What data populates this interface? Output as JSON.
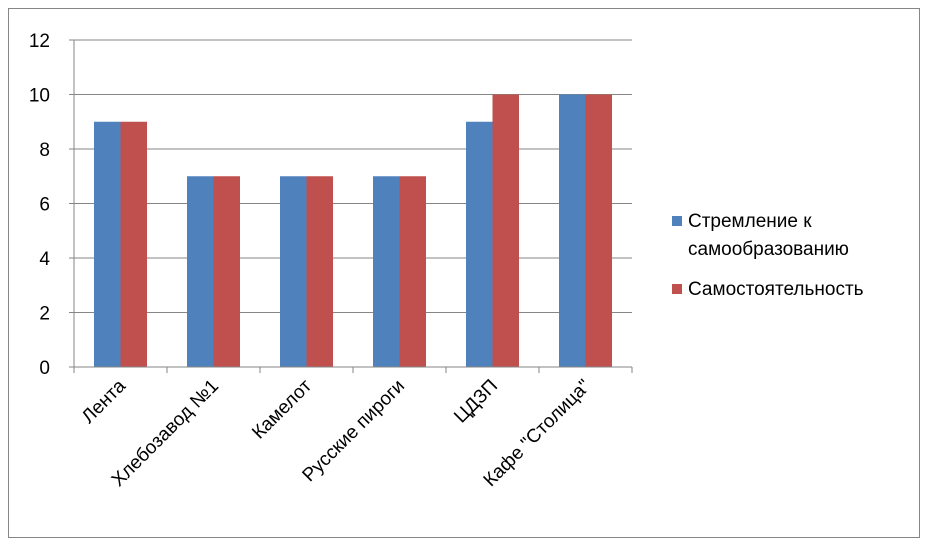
{
  "chart_data": {
    "type": "bar",
    "title": "",
    "xlabel": "",
    "ylabel": "",
    "categories": [
      "Лента",
      "Хлебозавод №1",
      "Камелот",
      "Русские пироги",
      "ЦДЗП",
      "Кафе \"Столица\""
    ],
    "series": [
      {
        "name": "Стремление к самообразованию",
        "color": "#4F81BD",
        "values": [
          9,
          7,
          7,
          7,
          9,
          10
        ]
      },
      {
        "name": "Самостоятельность",
        "color": "#C0504D",
        "values": [
          9,
          7,
          7,
          7,
          10,
          10
        ]
      }
    ],
    "ylim": [
      0,
      12
    ],
    "yticks": [
      "0",
      "2",
      "4",
      "6",
      "8",
      "10",
      "12"
    ],
    "grid": true,
    "legend_position": "right"
  }
}
